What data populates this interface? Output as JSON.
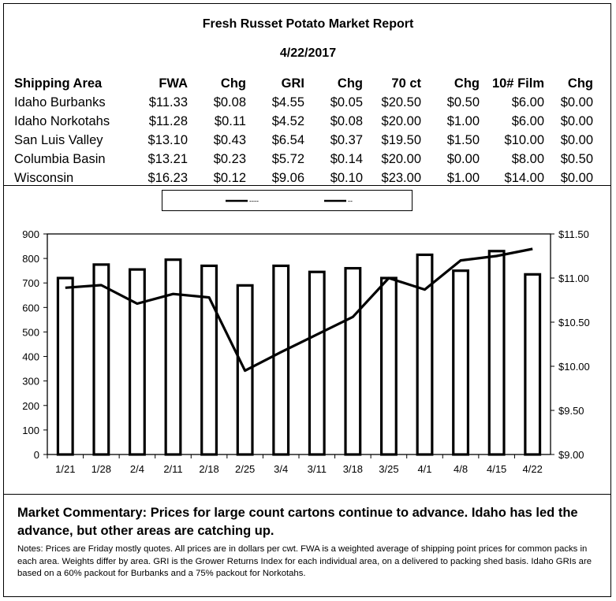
{
  "report": {
    "title": "Fresh Russet Potato Market Report",
    "date": "4/22/2017"
  },
  "table": {
    "headers": [
      "Shipping Area",
      "FWA",
      "Chg",
      "GRI",
      "Chg",
      "70 ct",
      "Chg",
      "10# Film",
      "Chg"
    ],
    "rows": [
      [
        "Idaho Burbanks",
        "$11.33",
        "$0.08",
        "$4.55",
        "$0.05",
        "$20.50",
        "$0.50",
        "$6.00",
        "$0.00"
      ],
      [
        "Idaho Norkotahs",
        "$11.28",
        "$0.11",
        "$4.52",
        "$0.08",
        "$20.00",
        "$1.00",
        "$6.00",
        "$0.00"
      ],
      [
        "San Luis Valley",
        "$13.10",
        "$0.43",
        "$6.54",
        "$0.37",
        "$19.50",
        "$1.50",
        "$10.00",
        "$0.00"
      ],
      [
        "Columbia Basin",
        "$13.21",
        "$0.23",
        "$5.72",
        "$0.14",
        "$20.00",
        "$0.00",
        "$8.00",
        "$0.50"
      ],
      [
        "Wisconsin",
        "$16.23",
        "$0.12",
        "$9.06",
        "$0.10",
        "$23.00",
        "$1.00",
        "$14.00",
        "$0.00"
      ]
    ]
  },
  "chart_data": {
    "type": "bar",
    "categories": [
      "1/21",
      "1/28",
      "2/4",
      "2/11",
      "2/18",
      "2/25",
      "3/4",
      "3/11",
      "3/18",
      "3/25",
      "4/1",
      "4/8",
      "4/15",
      "4/22"
    ],
    "series": [
      {
        "type": "bar",
        "axis": "left",
        "values": [
          720,
          775,
          755,
          795,
          770,
          690,
          770,
          745,
          760,
          720,
          815,
          750,
          830,
          735
        ]
      },
      {
        "type": "line",
        "axis": "right",
        "values": [
          10.89,
          10.92,
          10.71,
          10.82,
          10.78,
          9.95,
          10.16,
          10.36,
          10.56,
          11.0,
          10.87,
          11.2,
          11.25,
          11.33
        ]
      }
    ],
    "legend_labels": [
      "----",
      "--"
    ],
    "y_left": {
      "lim": [
        0,
        900
      ],
      "ticks": [
        "900",
        "800",
        "700",
        "600",
        "500",
        "400",
        "300",
        "200",
        "100",
        "0"
      ]
    },
    "y_right": {
      "lim": [
        9.0,
        11.5
      ],
      "ticks": [
        "$11.50",
        "$11.00",
        "$10.50",
        "$10.00",
        "$9.50",
        "$9.00"
      ]
    },
    "legend_position": "top",
    "grid": false
  },
  "commentary": "Market Commentary: Prices for large count cartons continue to advance. Idaho has led the advance, but other areas are catching up.",
  "notes": "Notes: Prices are Friday mostly quotes. All prices are in dollars per cwt. FWA is a weighted average of shipping point prices for  common packs in each area. Weights differ by area. GRI is the Grower Returns Index for each individual area, on a delivered to packing shed basis. Idaho GRIs are based on a 60% packout for Burbanks and a 75% packout for Norkotahs."
}
